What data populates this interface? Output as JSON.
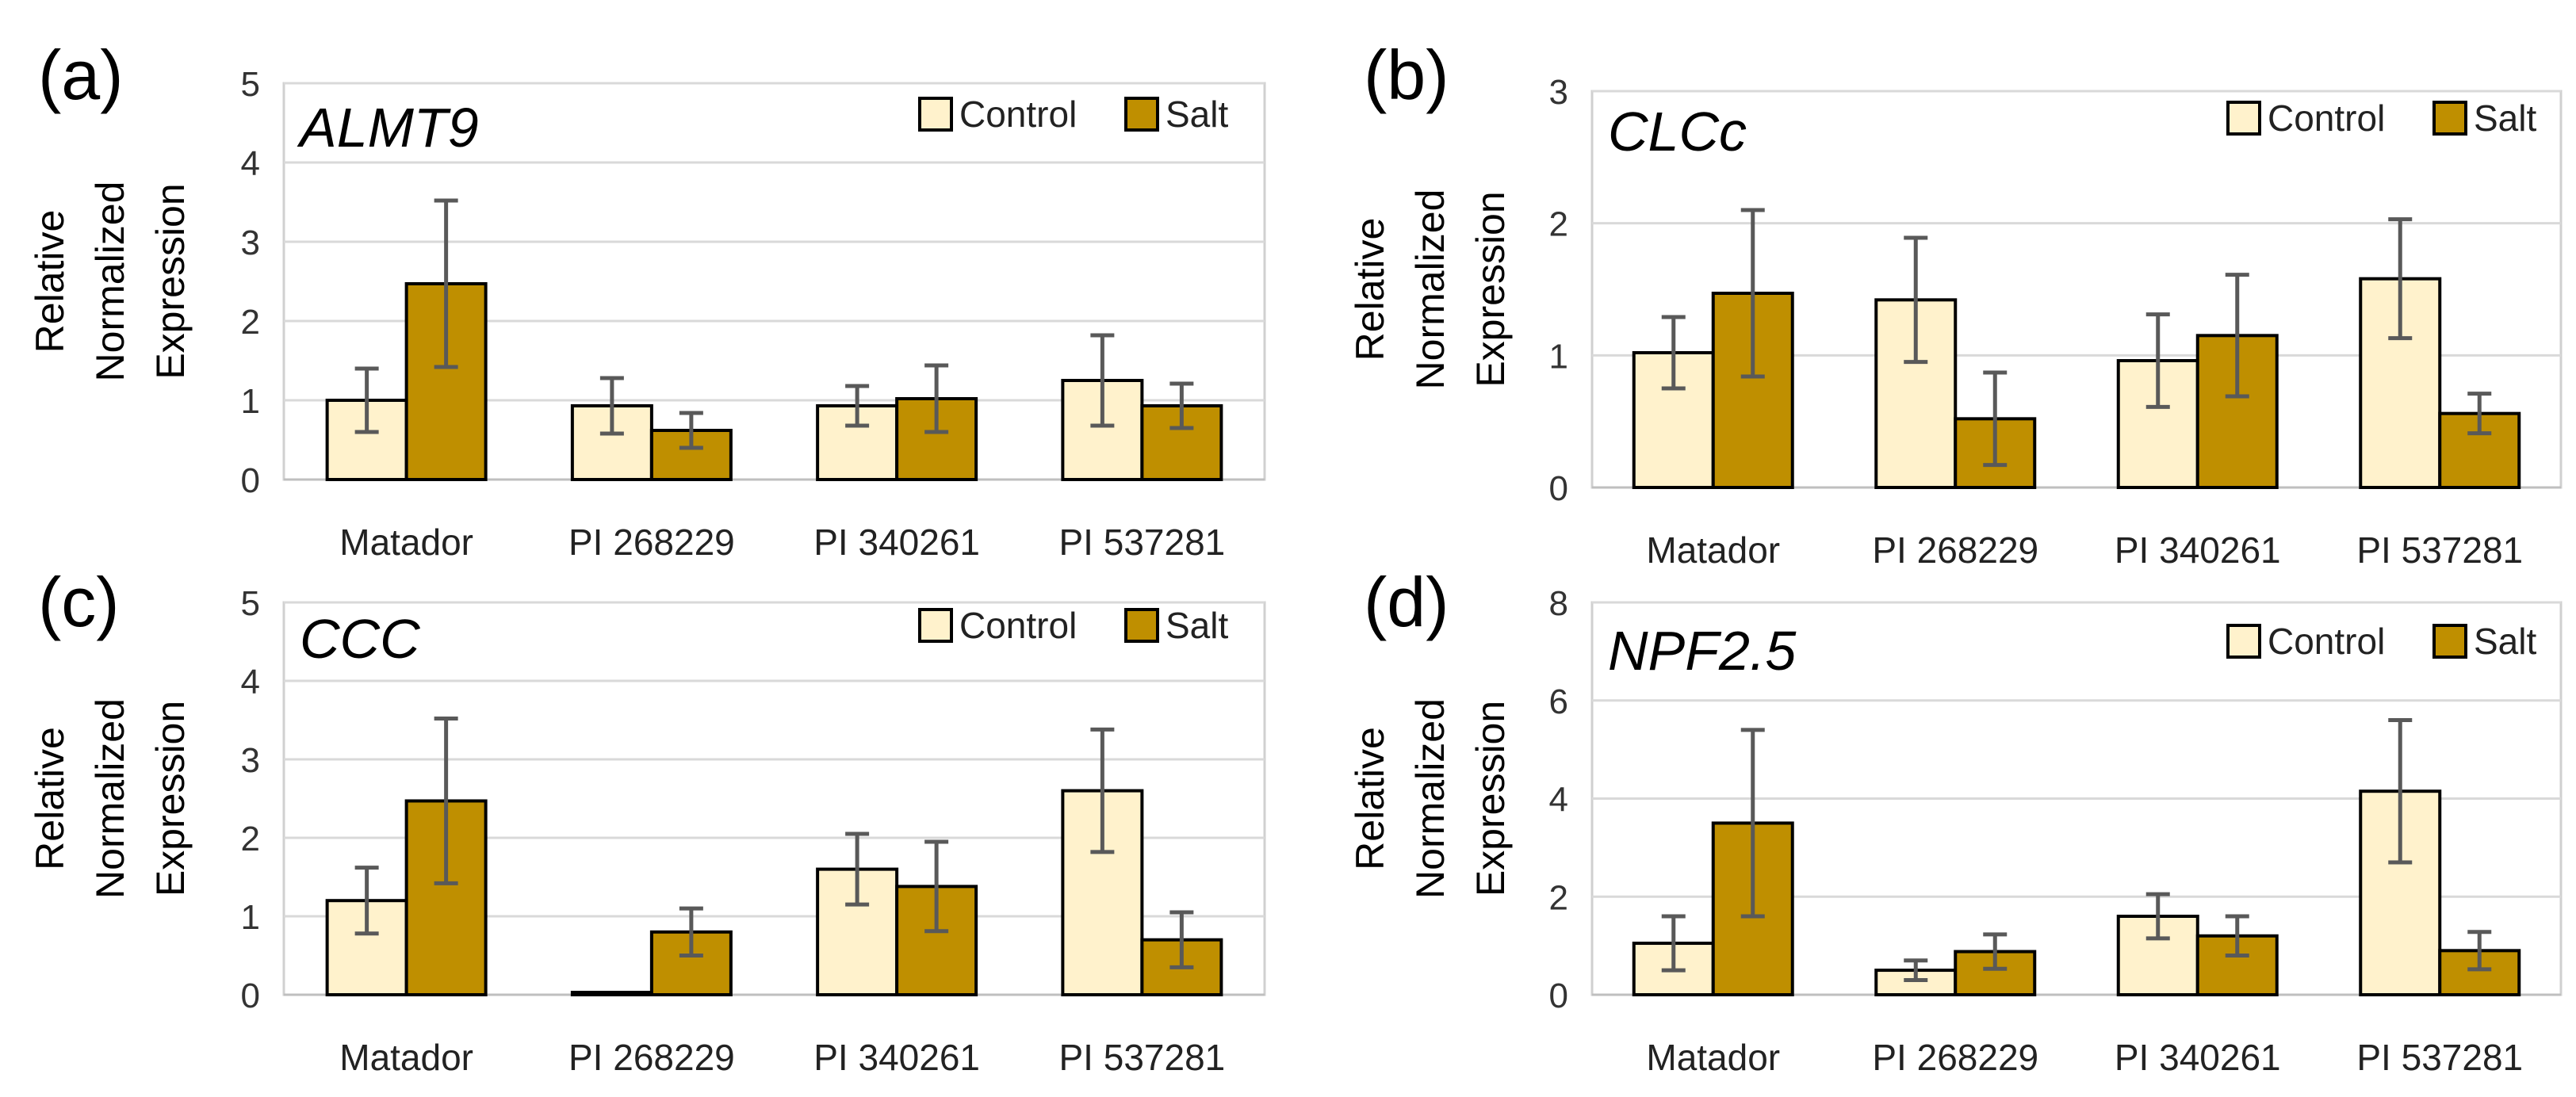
{
  "colors": {
    "control": "#FFF2CC",
    "salt": "#BF8F00",
    "gridline": "#d9d9d9",
    "error_bar": "#595959"
  },
  "chart_data": [
    {
      "type": "bar",
      "panel": "(a)",
      "title": "ALMT9",
      "ylabel_lines": [
        "Relative",
        "Normalized",
        "Expression"
      ],
      "xlabel": "",
      "categories": [
        "Matador",
        "PI 268229",
        "PI 340261",
        "PI 537281"
      ],
      "ylim": [
        0,
        5
      ],
      "yticks": [
        0,
        1,
        2,
        3,
        4,
        5
      ],
      "legend_position": "top-right",
      "series": [
        {
          "name": "Control",
          "values": [
            1.0,
            0.93,
            0.93,
            1.25
          ],
          "errors": [
            0.4,
            0.35,
            0.25,
            0.57
          ]
        },
        {
          "name": "Salt",
          "values": [
            2.47,
            0.62,
            1.02,
            0.93
          ],
          "errors": [
            1.05,
            0.22,
            0.42,
            0.28
          ]
        }
      ]
    },
    {
      "type": "bar",
      "panel": "(b)",
      "title": "CLCc",
      "ylabel_lines": [
        "Relative",
        "Normalized",
        "Expression"
      ],
      "xlabel": "",
      "categories": [
        "Matador",
        "PI 268229",
        "PI 340261",
        "PI 537281"
      ],
      "ylim": [
        0,
        3
      ],
      "yticks": [
        0,
        1,
        2,
        3
      ],
      "legend_position": "top-right",
      "series": [
        {
          "name": "Control",
          "values": [
            1.02,
            1.42,
            0.96,
            1.58
          ],
          "errors": [
            0.27,
            0.47,
            0.35,
            0.45
          ]
        },
        {
          "name": "Salt",
          "values": [
            1.47,
            0.52,
            1.15,
            0.56
          ],
          "errors": [
            0.63,
            0.35,
            0.46,
            0.15
          ]
        }
      ]
    },
    {
      "type": "bar",
      "panel": "(c)",
      "title": "CCC",
      "ylabel_lines": [
        "Relative",
        "Normalized",
        "Expression"
      ],
      "xlabel": "",
      "categories": [
        "Matador",
        "PI 268229",
        "PI 340261",
        "PI 537281"
      ],
      "ylim": [
        0,
        5
      ],
      "yticks": [
        0,
        1,
        2,
        3,
        4,
        5
      ],
      "legend_position": "top-right",
      "series": [
        {
          "name": "Control",
          "values": [
            1.2,
            0.03,
            1.6,
            2.6
          ],
          "errors": [
            0.42,
            0.0,
            0.45,
            0.78
          ]
        },
        {
          "name": "Salt",
          "values": [
            2.47,
            0.8,
            1.38,
            0.7
          ],
          "errors": [
            1.05,
            0.3,
            0.57,
            0.35
          ]
        }
      ]
    },
    {
      "type": "bar",
      "panel": "(d)",
      "title": "NPF2.5",
      "ylabel_lines": [
        "Relative",
        "Normalized",
        "Expression"
      ],
      "xlabel": "",
      "categories": [
        "Matador",
        "PI 268229",
        "PI 340261",
        "PI 537281"
      ],
      "ylim": [
        0,
        8
      ],
      "yticks": [
        0,
        2,
        4,
        6,
        8
      ],
      "legend_position": "top-right",
      "series": [
        {
          "name": "Control",
          "values": [
            1.05,
            0.5,
            1.6,
            4.15
          ],
          "errors": [
            0.55,
            0.2,
            0.45,
            1.45
          ]
        },
        {
          "name": "Salt",
          "values": [
            3.5,
            0.88,
            1.2,
            0.9
          ],
          "errors": [
            1.9,
            0.35,
            0.4,
            0.38
          ]
        }
      ]
    }
  ]
}
